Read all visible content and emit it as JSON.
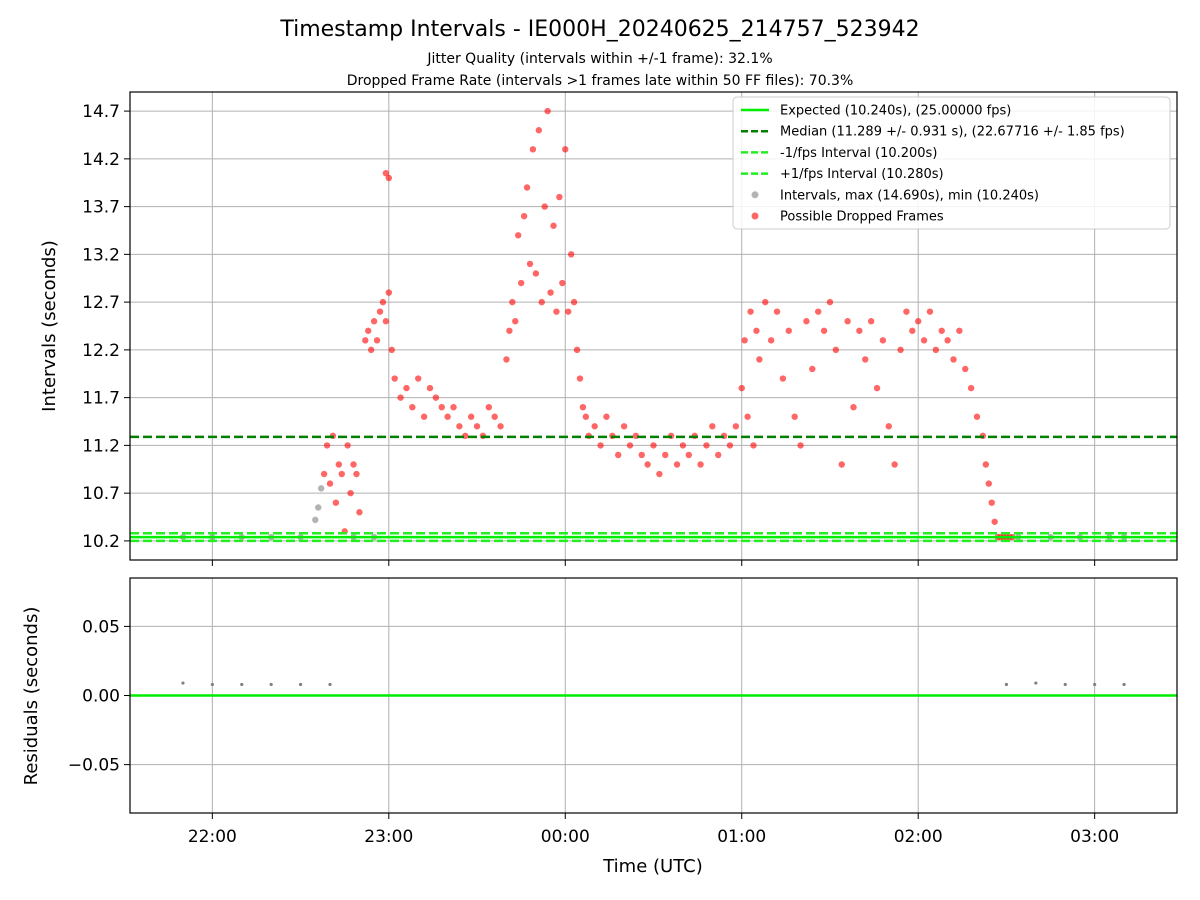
{
  "figure": {
    "title": "Timestamp Intervals - IE000H_20240625_214757_523942",
    "subtitle_1": "Jitter Quality (intervals within +/-1 frame): 32.1%",
    "subtitle_2": "Dropped Frame Rate (intervals >1 frames late within 50 FF files): 70.3%",
    "xlabel": "Time (UTC)"
  },
  "colors": {
    "expected": "#00ee00",
    "median": "#007f00",
    "interval_bounds": "#22ee22",
    "intervals": "#808080",
    "dropped": "#ff0000"
  },
  "chart_data": [
    {
      "id": "intervals",
      "type": "scatter",
      "ylabel": "Intervals (seconds)",
      "xlim": [
        "21:32",
        "03:28"
      ],
      "ylim": [
        10.0,
        14.9
      ],
      "y_ticks": [
        "10.2",
        "10.7",
        "11.2",
        "11.7",
        "12.2",
        "12.7",
        "13.2",
        "13.7",
        "14.2",
        "14.7"
      ],
      "grid": true,
      "legend_position": "top-right",
      "reference_lines": [
        {
          "name": "Expected (10.240s), (25.00000 fps)",
          "y": 10.24,
          "style": "solid",
          "color_key": "expected"
        },
        {
          "name": "Median (11.289 +/- 0.931 s), (22.67716 +/- 1.85 fps)",
          "y": 11.289,
          "style": "dashed",
          "color_key": "median"
        },
        {
          "name": "-1/fps Interval (10.200s)",
          "y": 10.2,
          "style": "dashed",
          "color_key": "interval_bounds"
        },
        {
          "name": "+1/fps Interval (10.280s)",
          "y": 10.28,
          "style": "dashed",
          "color_key": "interval_bounds"
        }
      ],
      "scatter_series": [
        {
          "name": "Intervals, max (14.690s), min (10.240s)",
          "color_key": "intervals"
        },
        {
          "name": "Possible Dropped Frames",
          "color_key": "dropped"
        }
      ],
      "series_on_time_axis": [
        {
          "series": "Intervals, max (14.690s), min (10.240s)",
          "points": [
            [
              "21:50",
              10.24
            ],
            [
              "22:00",
              10.24
            ],
            [
              "22:10",
              10.24
            ],
            [
              "22:20",
              10.24
            ],
            [
              "22:30",
              10.24
            ],
            [
              "22:35",
              10.42
            ],
            [
              "22:36",
              10.55
            ],
            [
              "22:37",
              10.75
            ],
            [
              "22:48",
              10.24
            ],
            [
              "22:55",
              10.24
            ],
            [
              "02:34",
              10.24
            ],
            [
              "02:45",
              10.24
            ],
            [
              "02:55",
              10.24
            ],
            [
              "03:05",
              10.24
            ],
            [
              "03:10",
              10.24
            ]
          ]
        },
        {
          "series": "Possible Dropped Frames",
          "points": [
            [
              "22:38",
              10.9
            ],
            [
              "22:39",
              11.2
            ],
            [
              "22:40",
              10.8
            ],
            [
              "22:41",
              11.3
            ],
            [
              "22:42",
              10.6
            ],
            [
              "22:43",
              11.0
            ],
            [
              "22:44",
              10.9
            ],
            [
              "22:45",
              10.3
            ],
            [
              "22:46",
              11.2
            ],
            [
              "22:47",
              10.7
            ],
            [
              "22:48",
              11.0
            ],
            [
              "22:49",
              10.9
            ],
            [
              "22:50",
              10.5
            ],
            [
              "22:52",
              12.3
            ],
            [
              "22:53",
              12.4
            ],
            [
              "22:54",
              12.2
            ],
            [
              "22:55",
              12.5
            ],
            [
              "22:56",
              12.3
            ],
            [
              "22:57",
              12.6
            ],
            [
              "22:58",
              12.7
            ],
            [
              "22:59",
              12.5
            ],
            [
              "23:00",
              12.8
            ],
            [
              "23:01",
              12.2
            ],
            [
              "22:59",
              14.05
            ],
            [
              "23:00",
              14.0
            ],
            [
              "23:02",
              11.9
            ],
            [
              "23:04",
              11.7
            ],
            [
              "23:06",
              11.8
            ],
            [
              "23:08",
              11.6
            ],
            [
              "23:10",
              11.9
            ],
            [
              "23:12",
              11.5
            ],
            [
              "23:14",
              11.8
            ],
            [
              "23:16",
              11.7
            ],
            [
              "23:18",
              11.6
            ],
            [
              "23:20",
              11.5
            ],
            [
              "23:22",
              11.6
            ],
            [
              "23:24",
              11.4
            ],
            [
              "23:26",
              11.3
            ],
            [
              "23:28",
              11.5
            ],
            [
              "23:30",
              11.4
            ],
            [
              "23:32",
              11.3
            ],
            [
              "23:34",
              11.6
            ],
            [
              "23:36",
              11.5
            ],
            [
              "23:38",
              11.4
            ],
            [
              "23:40",
              12.1
            ],
            [
              "23:41",
              12.4
            ],
            [
              "23:42",
              12.7
            ],
            [
              "23:43",
              12.5
            ],
            [
              "23:44",
              13.4
            ],
            [
              "23:45",
              12.9
            ],
            [
              "23:46",
              13.6
            ],
            [
              "23:47",
              13.9
            ],
            [
              "23:48",
              13.1
            ],
            [
              "23:49",
              14.3
            ],
            [
              "23:50",
              13.0
            ],
            [
              "23:51",
              14.5
            ],
            [
              "23:52",
              12.7
            ],
            [
              "23:53",
              13.7
            ],
            [
              "23:54",
              14.7
            ],
            [
              "23:55",
              12.8
            ],
            [
              "23:56",
              13.5
            ],
            [
              "23:57",
              12.6
            ],
            [
              "23:58",
              13.8
            ],
            [
              "23:59",
              12.9
            ],
            [
              "00:00",
              14.3
            ],
            [
              "00:01",
              12.6
            ],
            [
              "00:02",
              13.2
            ],
            [
              "00:03",
              12.7
            ],
            [
              "00:04",
              12.2
            ],
            [
              "00:05",
              11.9
            ],
            [
              "00:06",
              11.6
            ],
            [
              "00:07",
              11.5
            ],
            [
              "00:08",
              11.3
            ],
            [
              "00:10",
              11.4
            ],
            [
              "00:12",
              11.2
            ],
            [
              "00:14",
              11.5
            ],
            [
              "00:16",
              11.3
            ],
            [
              "00:18",
              11.1
            ],
            [
              "00:20",
              11.4
            ],
            [
              "00:22",
              11.2
            ],
            [
              "00:24",
              11.3
            ],
            [
              "00:26",
              11.1
            ],
            [
              "00:28",
              11.0
            ],
            [
              "00:30",
              11.2
            ],
            [
              "00:32",
              10.9
            ],
            [
              "00:34",
              11.1
            ],
            [
              "00:36",
              11.3
            ],
            [
              "00:38",
              11.0
            ],
            [
              "00:40",
              11.2
            ],
            [
              "00:42",
              11.1
            ],
            [
              "00:44",
              11.3
            ],
            [
              "00:46",
              11.0
            ],
            [
              "00:48",
              11.2
            ],
            [
              "00:50",
              11.4
            ],
            [
              "00:52",
              11.1
            ],
            [
              "00:54",
              11.3
            ],
            [
              "00:56",
              11.2
            ],
            [
              "00:58",
              11.4
            ],
            [
              "01:00",
              11.8
            ],
            [
              "01:01",
              12.3
            ],
            [
              "01:02",
              11.5
            ],
            [
              "01:03",
              12.6
            ],
            [
              "01:04",
              11.2
            ],
            [
              "01:05",
              12.4
            ],
            [
              "01:06",
              12.1
            ],
            [
              "01:08",
              12.7
            ],
            [
              "01:10",
              12.3
            ],
            [
              "01:12",
              12.6
            ],
            [
              "01:14",
              11.9
            ],
            [
              "01:16",
              12.4
            ],
            [
              "01:18",
              11.5
            ],
            [
              "01:20",
              11.2
            ],
            [
              "01:22",
              12.5
            ],
            [
              "01:24",
              12.0
            ],
            [
              "01:26",
              12.6
            ],
            [
              "01:28",
              12.4
            ],
            [
              "01:30",
              12.7
            ],
            [
              "01:32",
              12.2
            ],
            [
              "01:34",
              11.0
            ],
            [
              "01:36",
              12.5
            ],
            [
              "01:38",
              11.6
            ],
            [
              "01:40",
              12.4
            ],
            [
              "01:42",
              12.1
            ],
            [
              "01:44",
              12.5
            ],
            [
              "01:46",
              11.8
            ],
            [
              "01:48",
              12.3
            ],
            [
              "01:50",
              11.4
            ],
            [
              "01:52",
              11.0
            ],
            [
              "01:54",
              12.2
            ],
            [
              "01:56",
              12.6
            ],
            [
              "01:58",
              12.4
            ],
            [
              "02:00",
              12.5
            ],
            [
              "02:02",
              12.3
            ],
            [
              "02:04",
              12.6
            ],
            [
              "02:06",
              12.2
            ],
            [
              "02:08",
              12.4
            ],
            [
              "02:10",
              12.3
            ],
            [
              "02:12",
              12.1
            ],
            [
              "02:14",
              12.4
            ],
            [
              "02:16",
              12.0
            ],
            [
              "02:18",
              11.8
            ],
            [
              "02:20",
              11.5
            ],
            [
              "02:22",
              11.3
            ],
            [
              "02:23",
              11.0
            ],
            [
              "02:24",
              10.8
            ],
            [
              "02:25",
              10.6
            ],
            [
              "02:26",
              10.4
            ],
            [
              "02:27",
              10.24
            ],
            [
              "02:28",
              10.24
            ],
            [
              "02:29",
              10.24
            ],
            [
              "02:30",
              10.24
            ],
            [
              "02:31",
              10.24
            ],
            [
              "02:32",
              10.24
            ]
          ]
        }
      ]
    },
    {
      "id": "residuals",
      "type": "scatter",
      "ylabel": "Residuals (seconds)",
      "xlim": [
        "21:32",
        "03:28"
      ],
      "ylim": [
        -0.085,
        0.085
      ],
      "y_ticks": [
        "0.05",
        "0.00",
        "−0.05"
      ],
      "x_ticks": [
        "22:00",
        "23:00",
        "00:00",
        "01:00",
        "02:00",
        "03:00"
      ],
      "grid": true,
      "reference_lines": [
        {
          "y": 0.0,
          "style": "solid",
          "color_key": "expected"
        }
      ],
      "series_on_time_axis": [
        {
          "series": "residuals",
          "points": [
            [
              "21:50",
              0.009
            ],
            [
              "22:00",
              0.008
            ],
            [
              "22:10",
              0.008
            ],
            [
              "22:20",
              0.008
            ],
            [
              "22:30",
              0.008
            ],
            [
              "22:40",
              0.008
            ],
            [
              "02:30",
              0.008
            ],
            [
              "02:40",
              0.009
            ],
            [
              "02:50",
              0.008
            ],
            [
              "03:00",
              0.008
            ],
            [
              "03:10",
              0.008
            ]
          ]
        }
      ]
    }
  ]
}
